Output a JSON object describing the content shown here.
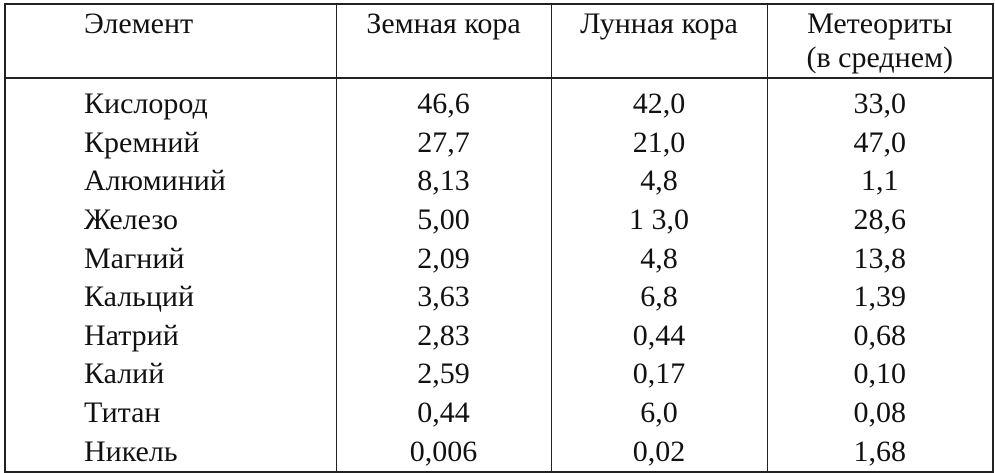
{
  "table": {
    "headers": {
      "element": "Элемент",
      "earth_crust": "Земная кора",
      "moon_crust": "Лунная кора",
      "meteorites_line1": "Метеориты",
      "meteorites_line2": "(в среднем)"
    },
    "rows": [
      {
        "element": "Кислород",
        "earth": "46,6",
        "moon": "42,0",
        "meteorites": "33,0"
      },
      {
        "element": "Кремний",
        "earth": "27,7",
        "moon": "21,0",
        "meteorites": "47,0"
      },
      {
        "element": "Алюминий",
        "earth": "8,13",
        "moon": "4,8",
        "meteorites": "1,1"
      },
      {
        "element": "Железо",
        "earth": "5,00",
        "moon": "1 3,0",
        "meteorites": "28,6"
      },
      {
        "element": "Магний",
        "earth": "2,09",
        "moon": "4,8",
        "meteorites": "13,8"
      },
      {
        "element": "Кальций",
        "earth": "3,63",
        "moon": "6,8",
        "meteorites": "1,39"
      },
      {
        "element": "Натрий",
        "earth": "2,83",
        "moon": "0,44",
        "meteorites": "0,68"
      },
      {
        "element": "Калий",
        "earth": "2,59",
        "moon": "0,17",
        "meteorites": "0,10"
      },
      {
        "element": "Титан",
        "earth": "0,44",
        "moon": "6,0",
        "meteorites": "0,08"
      },
      {
        "element": "Никель",
        "earth": "0,006",
        "moon": "0,02",
        "meteorites": "1,68"
      }
    ]
  }
}
